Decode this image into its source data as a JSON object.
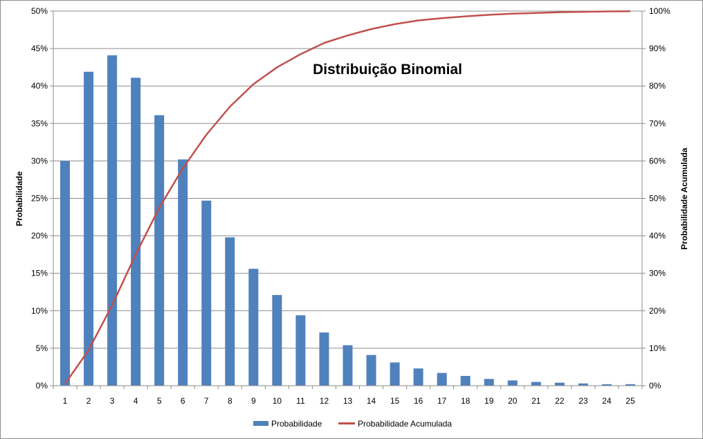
{
  "chart_data": {
    "type": "bar",
    "title": "Distribuição Binomial",
    "xlabel": "",
    "ylabel": "Probabilidade",
    "y2label": "Probabilidade Acumulada",
    "categories": [
      "1",
      "2",
      "3",
      "4",
      "5",
      "6",
      "7",
      "8",
      "9",
      "10",
      "11",
      "12",
      "13",
      "14",
      "15",
      "16",
      "17",
      "18",
      "19",
      "20",
      "21",
      "22",
      "23",
      "24",
      "25"
    ],
    "ylim": [
      0,
      50
    ],
    "y2lim": [
      0,
      100
    ],
    "y_ticks": [
      "0%",
      "5%",
      "10%",
      "15%",
      "20%",
      "25%",
      "30%",
      "35%",
      "40%",
      "45%",
      "50%"
    ],
    "y2_ticks": [
      "0%",
      "10%",
      "20%",
      "30%",
      "40%",
      "50%",
      "60%",
      "70%",
      "80%",
      "90%",
      "100%"
    ],
    "grid": true,
    "legend_position": "bottom",
    "series": [
      {
        "name": "Probabilidade",
        "type": "bar",
        "axis": "left",
        "color": "#4F81BD",
        "values": [
          30.0,
          41.9,
          44.1,
          41.1,
          36.1,
          30.2,
          24.7,
          19.8,
          15.6,
          12.1,
          9.4,
          7.1,
          5.4,
          4.1,
          3.1,
          2.3,
          1.7,
          1.3,
          0.9,
          0.7,
          0.5,
          0.4,
          0.3,
          0.2,
          0.2
        ]
      },
      {
        "name": "Probabilidade Acumulada",
        "type": "line",
        "axis": "right",
        "color": "#C0504D",
        "values": [
          0.5,
          9.5,
          21.5,
          35.0,
          47.5,
          58.0,
          67.0,
          74.5,
          80.5,
          85.0,
          88.5,
          91.5,
          93.5,
          95.2,
          96.5,
          97.5,
          98.1,
          98.6,
          99.0,
          99.3,
          99.5,
          99.7,
          99.8,
          99.9,
          99.95
        ]
      }
    ]
  }
}
